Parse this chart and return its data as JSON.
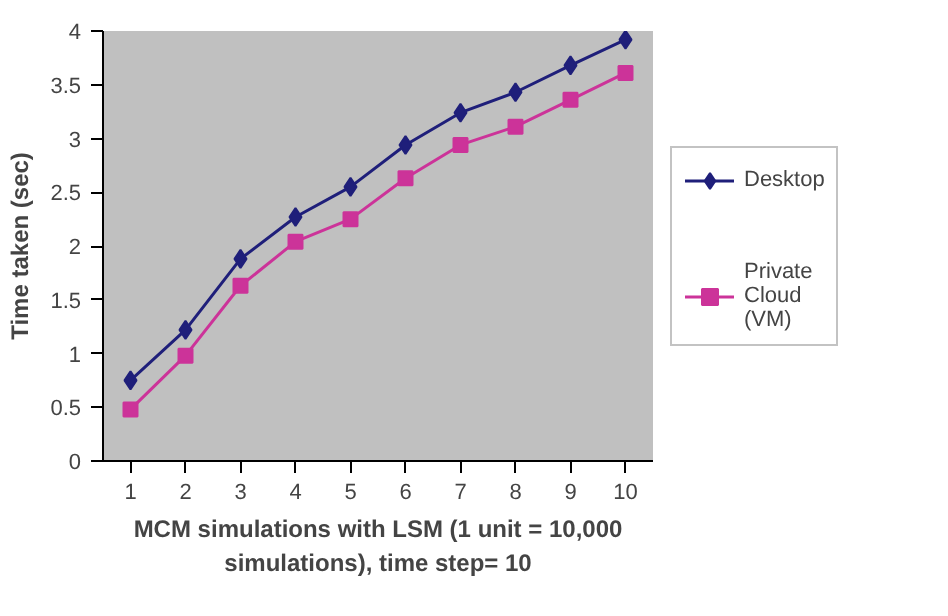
{
  "chart_data": {
    "type": "line",
    "xlabel": "MCM simulations with LSM (1 unit = 10,000 simulations), time step= 10",
    "ylabel": "Time taken (sec)",
    "categories": [
      "1",
      "2",
      "3",
      "4",
      "5",
      "6",
      "7",
      "8",
      "9",
      "10"
    ],
    "series": [
      {
        "name": "Desktop",
        "color": "#1f1f7a",
        "marker": "diamond",
        "values": [
          0.75,
          1.22,
          1.88,
          2.27,
          2.55,
          2.94,
          3.24,
          3.43,
          3.68,
          3.92
        ]
      },
      {
        "name": "Private Cloud (VM)",
        "color": "#cc3399",
        "marker": "square",
        "values": [
          0.48,
          0.98,
          1.63,
          2.04,
          2.25,
          2.63,
          2.94,
          3.11,
          3.36,
          3.61
        ]
      }
    ],
    "ylim": [
      0,
      4
    ],
    "yticks": [
      0,
      0.5,
      1,
      1.5,
      2,
      2.5,
      3,
      3.5,
      4
    ],
    "grid": false,
    "legend": "right"
  }
}
